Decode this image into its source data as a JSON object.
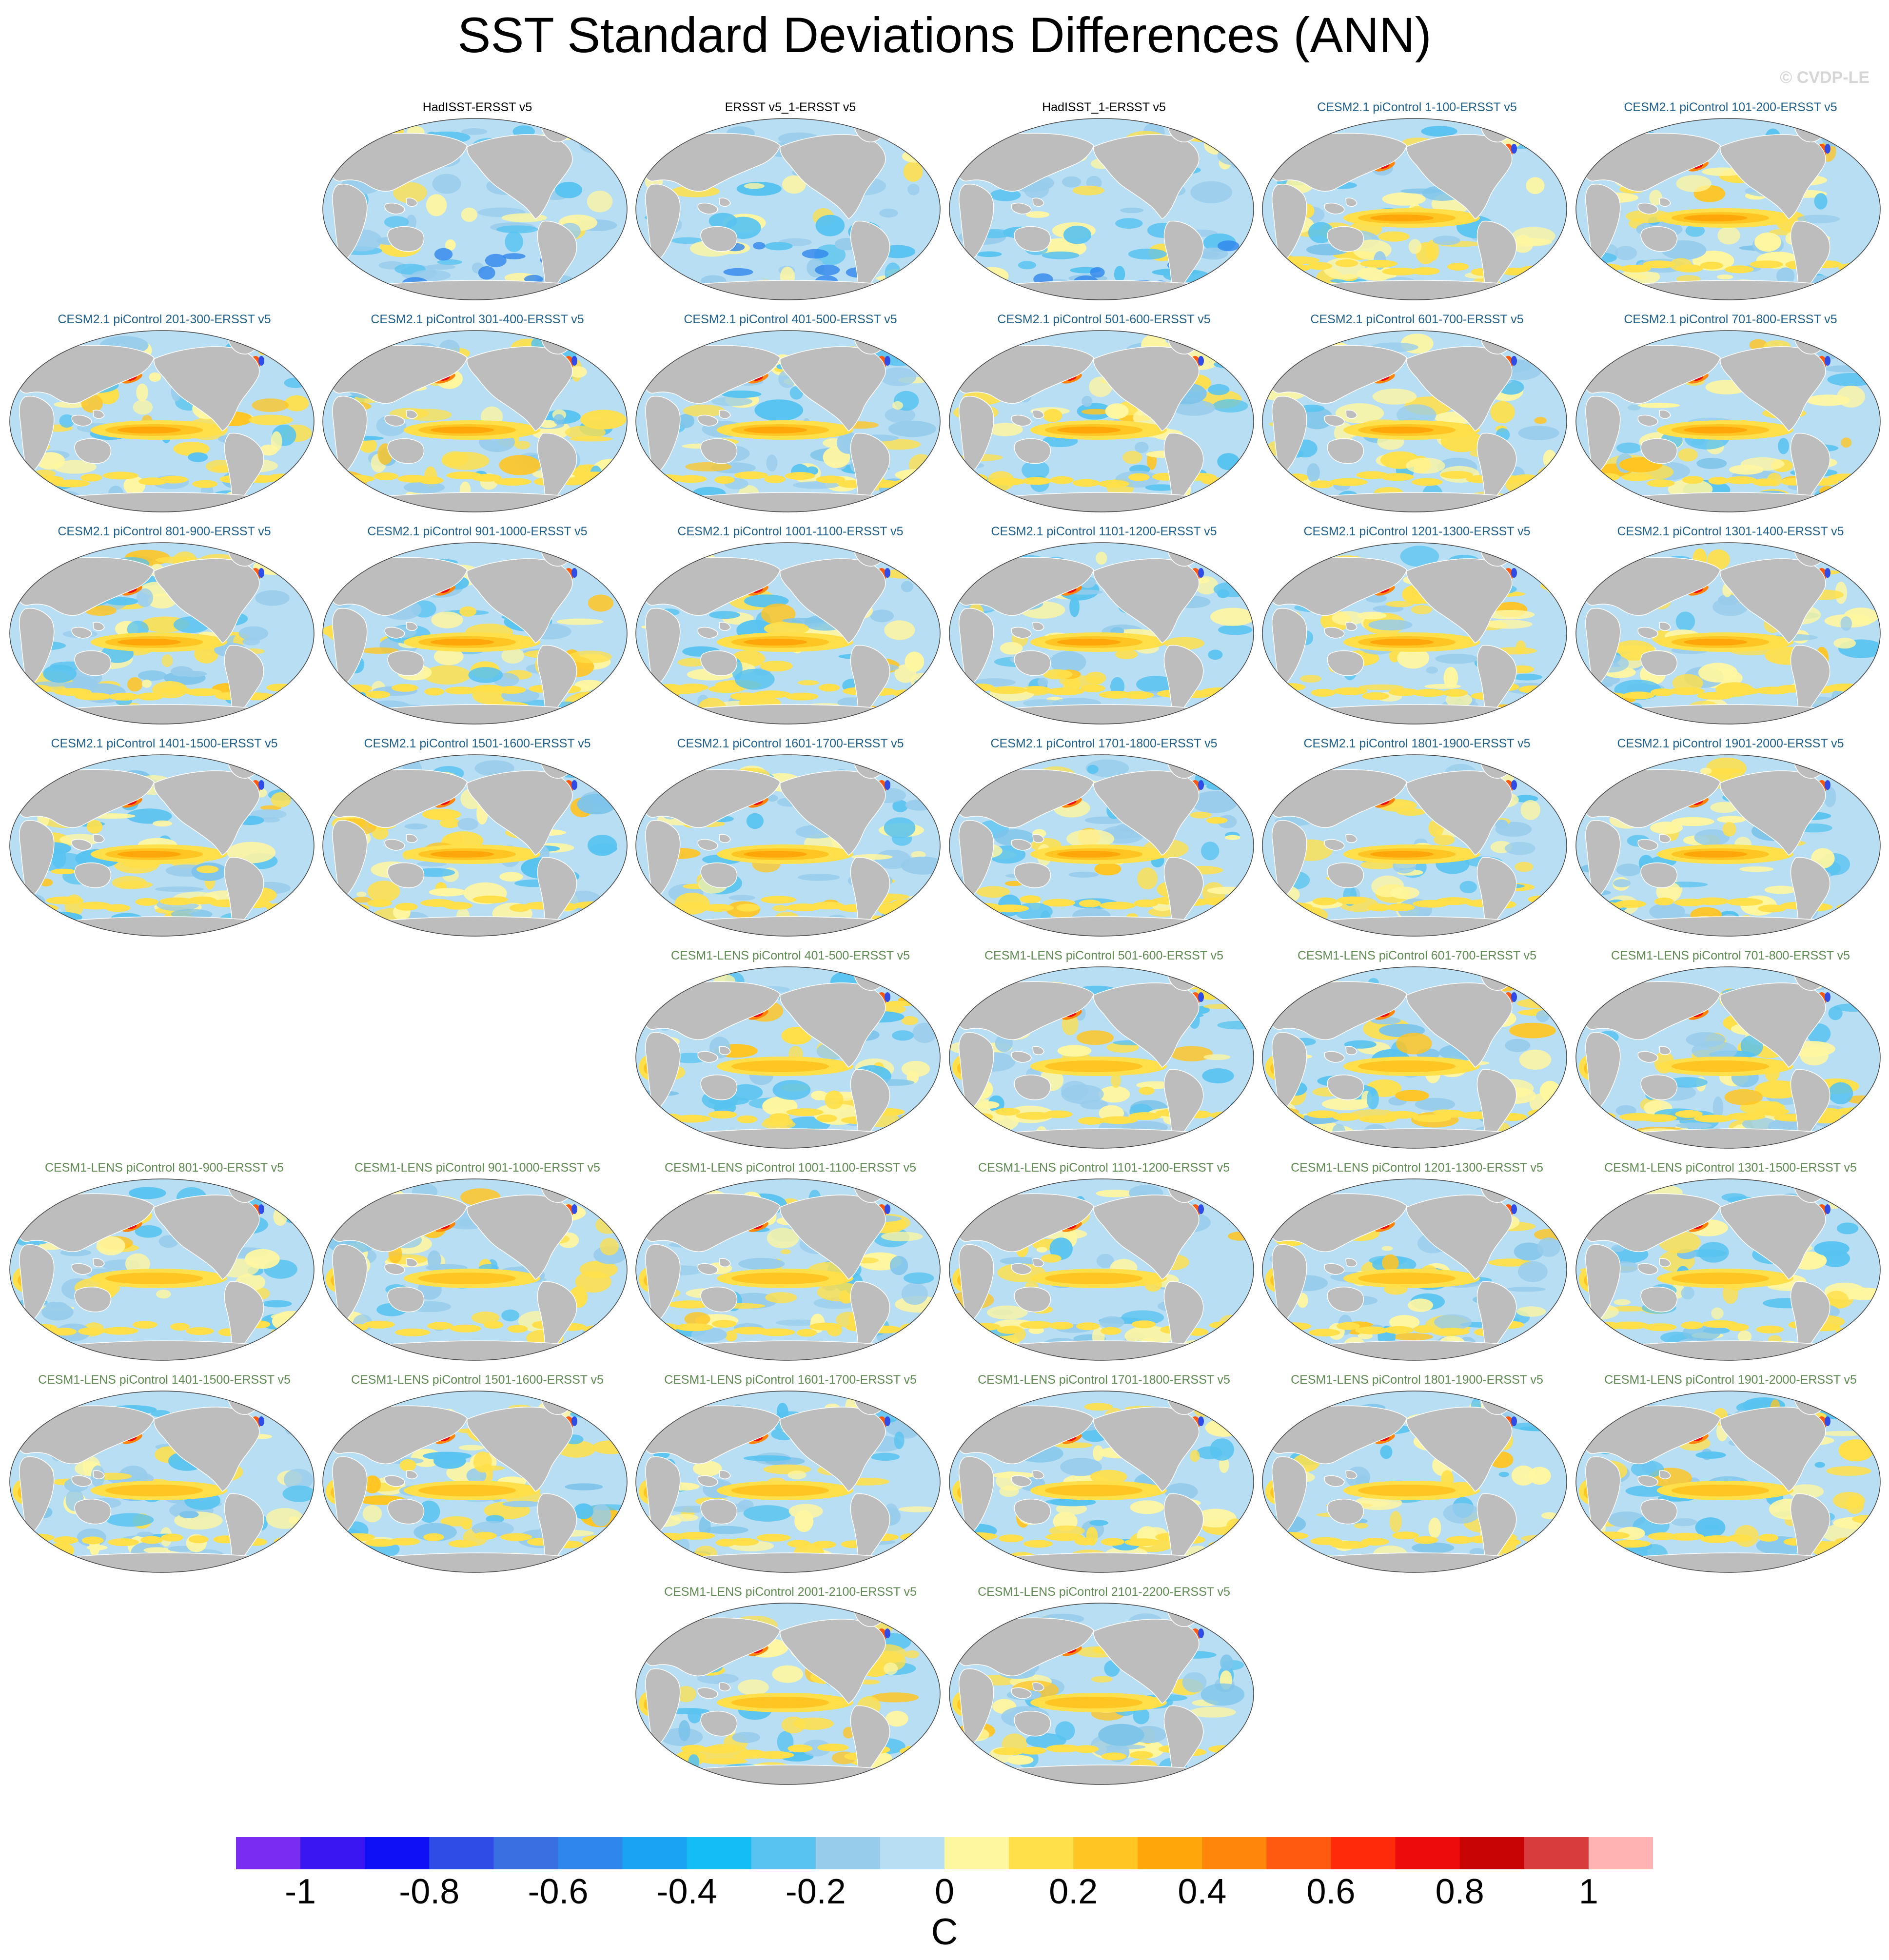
{
  "title": "SST Standard Deviations Differences (ANN)",
  "watermark": "© CVDP-LE",
  "label_colors": {
    "obs": "#000000",
    "cesm2": "#1f5f8b",
    "cesm1": "#5f8a52"
  },
  "map_colors": {
    "land": "#bdbdbd",
    "ocean_base": "#b8def3",
    "coast": "#ffffff"
  },
  "panels": [
    {
      "label": "HadISST-ERSST v5",
      "group": "obs",
      "row": 0,
      "col": 1
    },
    {
      "label": "ERSST v5_1-ERSST v5",
      "group": "obs",
      "row": 0,
      "col": 2
    },
    {
      "label": "HadISST_1-ERSST v5",
      "group": "obs",
      "row": 0,
      "col": 3
    },
    {
      "label": "CESM2.1 piControl 1-100-ERSST v5",
      "group": "cesm2",
      "row": 0,
      "col": 4
    },
    {
      "label": "CESM2.1 piControl 101-200-ERSST v5",
      "group": "cesm2",
      "row": 0,
      "col": 5
    },
    {
      "label": "CESM2.1 piControl 201-300-ERSST v5",
      "group": "cesm2",
      "row": 1,
      "col": 0
    },
    {
      "label": "CESM2.1 piControl 301-400-ERSST v5",
      "group": "cesm2",
      "row": 1,
      "col": 1
    },
    {
      "label": "CESM2.1 piControl 401-500-ERSST v5",
      "group": "cesm2",
      "row": 1,
      "col": 2
    },
    {
      "label": "CESM2.1 piControl 501-600-ERSST v5",
      "group": "cesm2",
      "row": 1,
      "col": 3
    },
    {
      "label": "CESM2.1 piControl 601-700-ERSST v5",
      "group": "cesm2",
      "row": 1,
      "col": 4
    },
    {
      "label": "CESM2.1 piControl 701-800-ERSST v5",
      "group": "cesm2",
      "row": 1,
      "col": 5
    },
    {
      "label": "CESM2.1 piControl 801-900-ERSST v5",
      "group": "cesm2",
      "row": 2,
      "col": 0
    },
    {
      "label": "CESM2.1 piControl 901-1000-ERSST v5",
      "group": "cesm2",
      "row": 2,
      "col": 1
    },
    {
      "label": "CESM2.1 piControl 1001-1100-ERSST v5",
      "group": "cesm2",
      "row": 2,
      "col": 2
    },
    {
      "label": "CESM2.1 piControl 1101-1200-ERSST v5",
      "group": "cesm2",
      "row": 2,
      "col": 3
    },
    {
      "label": "CESM2.1 piControl 1201-1300-ERSST v5",
      "group": "cesm2",
      "row": 2,
      "col": 4
    },
    {
      "label": "CESM2.1 piControl 1301-1400-ERSST v5",
      "group": "cesm2",
      "row": 2,
      "col": 5
    },
    {
      "label": "CESM2.1 piControl 1401-1500-ERSST v5",
      "group": "cesm2",
      "row": 3,
      "col": 0
    },
    {
      "label": "CESM2.1 piControl 1501-1600-ERSST v5",
      "group": "cesm2",
      "row": 3,
      "col": 1
    },
    {
      "label": "CESM2.1 piControl 1601-1700-ERSST v5",
      "group": "cesm2",
      "row": 3,
      "col": 2
    },
    {
      "label": "CESM2.1 piControl 1701-1800-ERSST v5",
      "group": "cesm2",
      "row": 3,
      "col": 3
    },
    {
      "label": "CESM2.1 piControl 1801-1900-ERSST v5",
      "group": "cesm2",
      "row": 3,
      "col": 4
    },
    {
      "label": "CESM2.1 piControl 1901-2000-ERSST v5",
      "group": "cesm2",
      "row": 3,
      "col": 5
    },
    {
      "label": "CESM1-LENS piControl 401-500-ERSST v5",
      "group": "cesm1",
      "row": 4,
      "col": 2
    },
    {
      "label": "CESM1-LENS piControl 501-600-ERSST v5",
      "group": "cesm1",
      "row": 4,
      "col": 3
    },
    {
      "label": "CESM1-LENS piControl 601-700-ERSST v5",
      "group": "cesm1",
      "row": 4,
      "col": 4
    },
    {
      "label": "CESM1-LENS piControl 701-800-ERSST v5",
      "group": "cesm1",
      "row": 4,
      "col": 5
    },
    {
      "label": "CESM1-LENS piControl 801-900-ERSST v5",
      "group": "cesm1",
      "row": 5,
      "col": 0
    },
    {
      "label": "CESM1-LENS piControl 901-1000-ERSST v5",
      "group": "cesm1",
      "row": 5,
      "col": 1
    },
    {
      "label": "CESM1-LENS piControl 1001-1100-ERSST v5",
      "group": "cesm1",
      "row": 5,
      "col": 2
    },
    {
      "label": "CESM1-LENS piControl 1101-1200-ERSST v5",
      "group": "cesm1",
      "row": 5,
      "col": 3
    },
    {
      "label": "CESM1-LENS piControl 1201-1300-ERSST v5",
      "group": "cesm1",
      "row": 5,
      "col": 4
    },
    {
      "label": "CESM1-LENS piControl 1301-1500-ERSST v5",
      "group": "cesm1",
      "row": 5,
      "col": 5
    },
    {
      "label": "CESM1-LENS piControl 1401-1500-ERSST v5",
      "group": "cesm1",
      "row": 6,
      "col": 0
    },
    {
      "label": "CESM1-LENS piControl 1501-1600-ERSST v5",
      "group": "cesm1",
      "row": 6,
      "col": 1
    },
    {
      "label": "CESM1-LENS piControl 1601-1700-ERSST v5",
      "group": "cesm1",
      "row": 6,
      "col": 2
    },
    {
      "label": "CESM1-LENS piControl 1701-1800-ERSST v5",
      "group": "cesm1",
      "row": 6,
      "col": 3
    },
    {
      "label": "CESM1-LENS piControl 1801-1900-ERSST v5",
      "group": "cesm1",
      "row": 6,
      "col": 4
    },
    {
      "label": "CESM1-LENS piControl 1901-2000-ERSST v5",
      "group": "cesm1",
      "row": 6,
      "col": 5
    },
    {
      "label": "CESM1-LENS piControl 2001-2100-ERSST v5",
      "group": "cesm1",
      "row": 7,
      "col": 2
    },
    {
      "label": "CESM1-LENS piControl 2101-2200-ERSST v5",
      "group": "cesm1",
      "row": 7,
      "col": 3
    }
  ],
  "colorbar": {
    "units": "C",
    "colors": [
      "#7a2cf0",
      "#3a16f0",
      "#1010f6",
      "#2f4de6",
      "#3a6fe2",
      "#2f86ec",
      "#1aa3f3",
      "#14bdf5",
      "#59c3f0",
      "#98cceb",
      "#b8def3",
      "#fff6a0",
      "#ffe04a",
      "#ffc523",
      "#ffa60a",
      "#ff860a",
      "#ff5a10",
      "#ff2a0a",
      "#ec0c0c",
      "#c80404",
      "#d83c3c",
      "#ffb3b3"
    ],
    "ticks": [
      {
        "value": -1,
        "label": "-1"
      },
      {
        "value": -0.8,
        "label": "-0.8"
      },
      {
        "value": -0.6,
        "label": "-0.6"
      },
      {
        "value": -0.4,
        "label": "-0.4"
      },
      {
        "value": -0.2,
        "label": "-0.2"
      },
      {
        "value": 0,
        "label": "0"
      },
      {
        "value": 0.2,
        "label": "0.2"
      },
      {
        "value": 0.4,
        "label": "0.4"
      },
      {
        "value": 0.6,
        "label": "0.6"
      },
      {
        "value": 0.8,
        "label": "0.8"
      },
      {
        "value": 1,
        "label": "1"
      }
    ]
  }
}
